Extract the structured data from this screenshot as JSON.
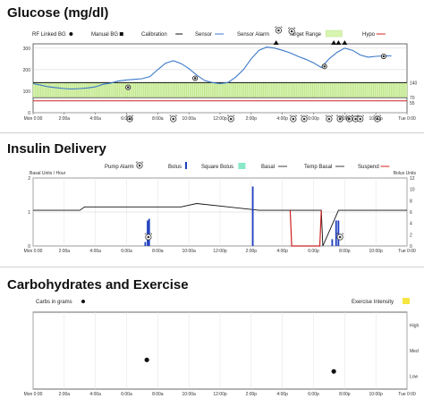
{
  "panels": {
    "glucose": {
      "title": "Glucose (mg/dl)",
      "legend": [
        {
          "label": "RF Linked BG",
          "symbol": "circle"
        },
        {
          "label": "Manual BG",
          "symbol": "square"
        },
        {
          "label": "Calibration",
          "symbol": "line"
        },
        {
          "label": "Sensor",
          "symbol": "blue-line"
        },
        {
          "label": "Sensor Alarm",
          "symbol": "alarm-icon"
        },
        {
          "label": "Target Range",
          "symbol": "green-box"
        },
        {
          "label": "Hypo",
          "symbol": "red-line"
        }
      ]
    },
    "insulin": {
      "title": "Insulin Delivery",
      "left_axis_label": "Basal Units / Hour",
      "right_axis_label": "Bolus Units",
      "legend": [
        {
          "label": "Pump Alarm",
          "symbol": "alarm-icon"
        },
        {
          "label": "Bolus",
          "symbol": "blue-bar"
        },
        {
          "label": "Square Bolus",
          "symbol": "teal-box"
        },
        {
          "label": "Basal",
          "symbol": "black-line"
        },
        {
          "label": "Temp Basal",
          "symbol": "black-line"
        },
        {
          "label": "Suspend",
          "symbol": "red-line"
        }
      ]
    },
    "carbs": {
      "title": "Carbohydrates and Exercise",
      "legend_left": "Carbs in grams",
      "legend_right": "Exercise Intensity"
    }
  },
  "chart_data": [
    {
      "type": "line",
      "x_ticks": [
        "Mon 0:00",
        "2:00a",
        "4:00a",
        "6:00a",
        "8:00a",
        "10:00a",
        "12:00p",
        "2:00p",
        "4:00p",
        "6:00p",
        "8:00p",
        "10:00p",
        "Tue 0:00"
      ],
      "xlim": [
        0,
        24
      ],
      "ylim": [
        0,
        320
      ],
      "y_ticks": [
        0,
        100,
        200,
        300
      ],
      "y_tick_labels": [
        "0",
        "100",
        "200",
        "300"
      ],
      "right_ticks": [
        {
          "value": 140,
          "label": "140"
        },
        {
          "value": 70,
          "label": "70"
        },
        {
          "value": 55,
          "label": "55"
        }
      ],
      "target_range": [
        70,
        140
      ],
      "hypo_line": 55,
      "sensor": {
        "x": [
          0,
          0.5,
          1,
          1.5,
          2,
          2.5,
          3,
          3.5,
          4,
          4.5,
          5,
          5.5,
          6,
          6.5,
          7,
          7.5,
          8,
          8.5,
          9,
          9.5,
          10,
          10.5,
          11,
          11.5,
          12,
          12.5,
          13,
          13.5,
          14,
          14.5,
          15,
          15.5,
          16,
          16.5,
          17,
          17.5,
          18,
          18.5,
          19,
          19.5,
          20,
          20.5,
          21,
          21.5,
          22,
          22.5,
          23
        ],
        "y": [
          135,
          128,
          120,
          116,
          112,
          110,
          112,
          115,
          120,
          132,
          138,
          148,
          152,
          155,
          158,
          168,
          200,
          230,
          242,
          228,
          205,
          175,
          150,
          140,
          135,
          140,
          165,
          200,
          250,
          290,
          305,
          300,
          290,
          278,
          262,
          248,
          232,
          210,
          250,
          280,
          300,
          290,
          268,
          258,
          262,
          264,
          264
        ]
      },
      "bg_readings": [
        {
          "x": 6.1,
          "y": 118
        },
        {
          "x": 10.4,
          "y": 160
        },
        {
          "x": 18.7,
          "y": 215
        },
        {
          "x": 22.5,
          "y": 262
        }
      ],
      "sensor_alarms_top": [
        15.6,
        19.3,
        19.6,
        20.0
      ],
      "alarm_icons_top": [
        16.6
      ],
      "alarm_icons_bottom": [
        6.2,
        9.0,
        12.7,
        16.7,
        17.4,
        19.0,
        19.7,
        20.3,
        20.7,
        21.0,
        22.1
      ]
    },
    {
      "type": "line",
      "x_ticks": [
        "Mon 0:00",
        "2:00a",
        "4:00a",
        "6:00a",
        "8:00a",
        "10:00a",
        "12:00p",
        "2:00p",
        "4:00p",
        "6:00p",
        "8:00p",
        "10:00p",
        "Tue 0:00"
      ],
      "xlim": [
        0,
        24
      ],
      "ylim_left": [
        0,
        2
      ],
      "y_ticks_left": [
        0,
        1,
        2
      ],
      "ylim_right": [
        0,
        12
      ],
      "y_ticks_right": [
        0,
        2,
        4,
        6,
        8,
        10,
        12
      ],
      "basal": {
        "x": [
          0,
          3,
          3.3,
          9.5,
          10.5,
          14.5,
          18.5,
          18.6,
          19.6,
          24
        ],
        "y": [
          1.05,
          1.05,
          1.15,
          1.15,
          1.25,
          1.05,
          1.05,
          0,
          1.05,
          1.05
        ]
      },
      "suspend": {
        "x": [
          16.5,
          16.6,
          18.4,
          18.5
        ],
        "y": [
          1.05,
          0,
          0,
          1.05
        ]
      },
      "bolus": [
        {
          "x": 7.2,
          "units": 0.7
        },
        {
          "x": 7.35,
          "units": 4.5
        },
        {
          "x": 7.45,
          "units": 4.8
        },
        {
          "x": 14.1,
          "units": 10.5
        },
        {
          "x": 19.2,
          "units": 1.2
        },
        {
          "x": 19.45,
          "units": 4.5
        },
        {
          "x": 19.6,
          "units": 4.5
        }
      ],
      "alarm_icons": [
        7.4,
        19.7
      ]
    },
    {
      "type": "scatter",
      "x_ticks": [
        "Mon 0:00",
        "2:00a",
        "4:00a",
        "6:00a",
        "8:00a",
        "10:00a",
        "12:00p",
        "2:00p",
        "4:00p",
        "6:00p",
        "8:00p",
        "10:00p",
        "Tue 0:00"
      ],
      "xlim": [
        0,
        24
      ],
      "right_tick_labels": [
        "High",
        "Med",
        "Low"
      ],
      "carbs": [
        {
          "x": 7.3,
          "y": 0.38
        },
        {
          "x": 19.3,
          "y": 0.23
        }
      ]
    }
  ]
}
